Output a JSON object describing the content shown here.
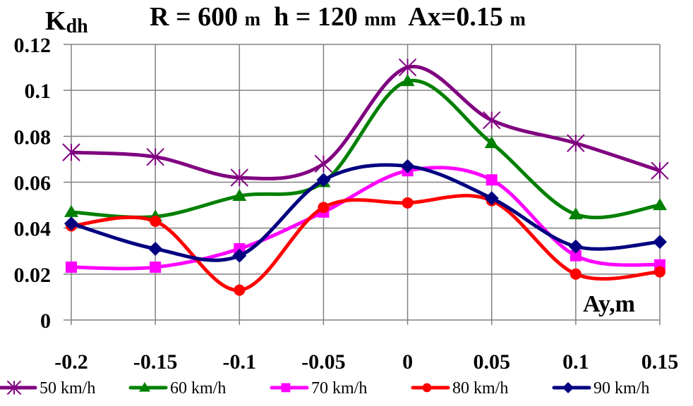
{
  "chart_data": {
    "type": "line",
    "title": "R = 600 m   h = 120 mm  Ax=0.15 m",
    "title_parts": [
      {
        "text": "R = 600 ",
        "big": true
      },
      {
        "text": "m",
        "big": false
      },
      {
        "text": "  h = 120 ",
        "big": true
      },
      {
        "text": "mm",
        "big": false
      },
      {
        "text": "  Ax=0.15 ",
        "big": true
      },
      {
        "text": "m",
        "big": false
      }
    ],
    "ylabel": "Kdh",
    "ylabel_main": "K",
    "ylabel_sub": "dh",
    "xlabel": "Ay,m",
    "x": [
      -0.2,
      -0.15,
      -0.1,
      -0.05,
      0,
      0.05,
      0.1,
      0.15
    ],
    "x_tick_labels": [
      "-0.2",
      "-0.15",
      "-0.1",
      "-0.05",
      "0",
      "0.05",
      "0.1",
      "0.15"
    ],
    "y_ticks": [
      0,
      0.02,
      0.04,
      0.06,
      0.08,
      0.1,
      0.12
    ],
    "y_tick_labels": [
      "0",
      "0.02",
      "0.04",
      "0.06",
      "0.08",
      "0.1",
      "0.12"
    ],
    "ylim": [
      0,
      0.12
    ],
    "grid": true,
    "smooth": true,
    "legend_position": "bottom",
    "series": [
      {
        "name": "50 km/h",
        "color": "#800080",
        "marker": "asterisk",
        "values": [
          0.073,
          0.071,
          0.062,
          0.068,
          0.11,
          0.087,
          0.077,
          0.065
        ]
      },
      {
        "name": "60 km/h",
        "color": "#008000",
        "marker": "triangle",
        "values": [
          0.047,
          0.045,
          0.054,
          0.06,
          0.104,
          0.077,
          0.046,
          0.05
        ]
      },
      {
        "name": "70 km/h",
        "color": "#ff00ff",
        "marker": "square",
        "values": [
          0.023,
          0.023,
          0.031,
          0.047,
          0.065,
          0.061,
          0.028,
          0.024
        ]
      },
      {
        "name": "80 km/h",
        "color": "#ff0000",
        "marker": "circle",
        "values": [
          0.041,
          0.043,
          0.013,
          0.049,
          0.051,
          0.052,
          0.02,
          0.021
        ]
      },
      {
        "name": "90 km/h",
        "color": "#000080",
        "marker": "diamond",
        "values": [
          0.042,
          0.031,
          0.028,
          0.061,
          0.067,
          0.053,
          0.032,
          0.034
        ]
      }
    ]
  }
}
